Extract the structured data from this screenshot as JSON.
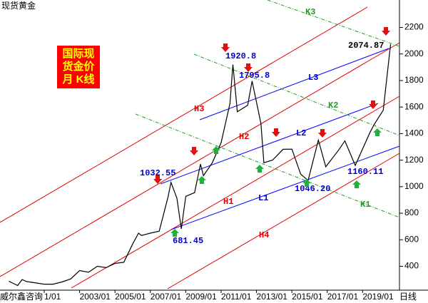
{
  "chart_data": {
    "type": "line",
    "title": "现货黄金",
    "source": "威尔鑫咨询",
    "logo": [
      "国际现",
      "货金价",
      "月  K线"
    ],
    "period_label": "日线",
    "x": [
      "1999/01",
      "1999/07",
      "1999/10",
      "2000/01",
      "2001/01",
      "2001/07",
      "2002/01",
      "2002/07",
      "2003/01",
      "2003/07",
      "2004/01",
      "2004/07",
      "2005/01",
      "2005/07",
      "2006/01",
      "2006/05",
      "2006/07",
      "2007/01",
      "2007/07",
      "2008/01",
      "2008/03",
      "2008/07",
      "2008/10",
      "2009/01",
      "2009/07",
      "2009/11",
      "2010/01",
      "2010/07",
      "2011/01",
      "2011/07",
      "2011/09",
      "2011/12",
      "2012/07",
      "2012/10",
      "2013/04",
      "2013/06",
      "2013/12",
      "2014/07",
      "2015/01",
      "2015/07",
      "2015/12",
      "2016/07",
      "2016/12",
      "2017/09",
      "2018/01",
      "2018/08",
      "2019/06",
      "2019/09",
      "2020/03",
      "2020/07",
      "2020/08"
    ],
    "series": [
      {
        "name": "现货黄金",
        "color": "#000000",
        "values": [
          287,
          255,
          300,
          285,
          265,
          265,
          282,
          305,
          368,
          355,
          400,
          390,
          422,
          430,
          568,
          650,
          632,
          650,
          665,
          923,
          1032.55,
          913,
          681.45,
          927,
          955,
          1170,
          1083,
          1180,
          1332,
          1628,
          1920.8,
          1565,
          1614,
          1795.8,
          1476,
          1180,
          1201,
          1282,
          1283,
          1095,
          1046.2,
          1351,
          1150,
          1280,
          1345,
          1160.11,
          1409,
          1472,
          1577,
          1975,
          2074.87
        ]
      }
    ],
    "annotations": [
      "1920.8",
      "1795.8",
      "2074.87",
      "1032.55",
      "681.45",
      "1046.20",
      "1160.11"
    ],
    "trend_labels": [
      "H1",
      "H2",
      "H3",
      "H4",
      "L1",
      "L2",
      "L3",
      "K1",
      "K2",
      "K3"
    ],
    "xlim": [
      "1998/07",
      "2021/02"
    ],
    "xticks": [
      {
        "value": "2001/01",
        "label": "1/01"
      },
      "2003/01",
      "2005/01",
      "2007/01",
      "2009/01",
      "2011/01",
      "2013/01",
      "2015/01",
      "2017/01",
      "2019/01"
    ],
    "ylim": [
      220,
      2380
    ],
    "yticks": [
      400,
      600,
      800,
      1000,
      1200,
      1400,
      1600,
      1800,
      2000,
      2200
    ]
  }
}
